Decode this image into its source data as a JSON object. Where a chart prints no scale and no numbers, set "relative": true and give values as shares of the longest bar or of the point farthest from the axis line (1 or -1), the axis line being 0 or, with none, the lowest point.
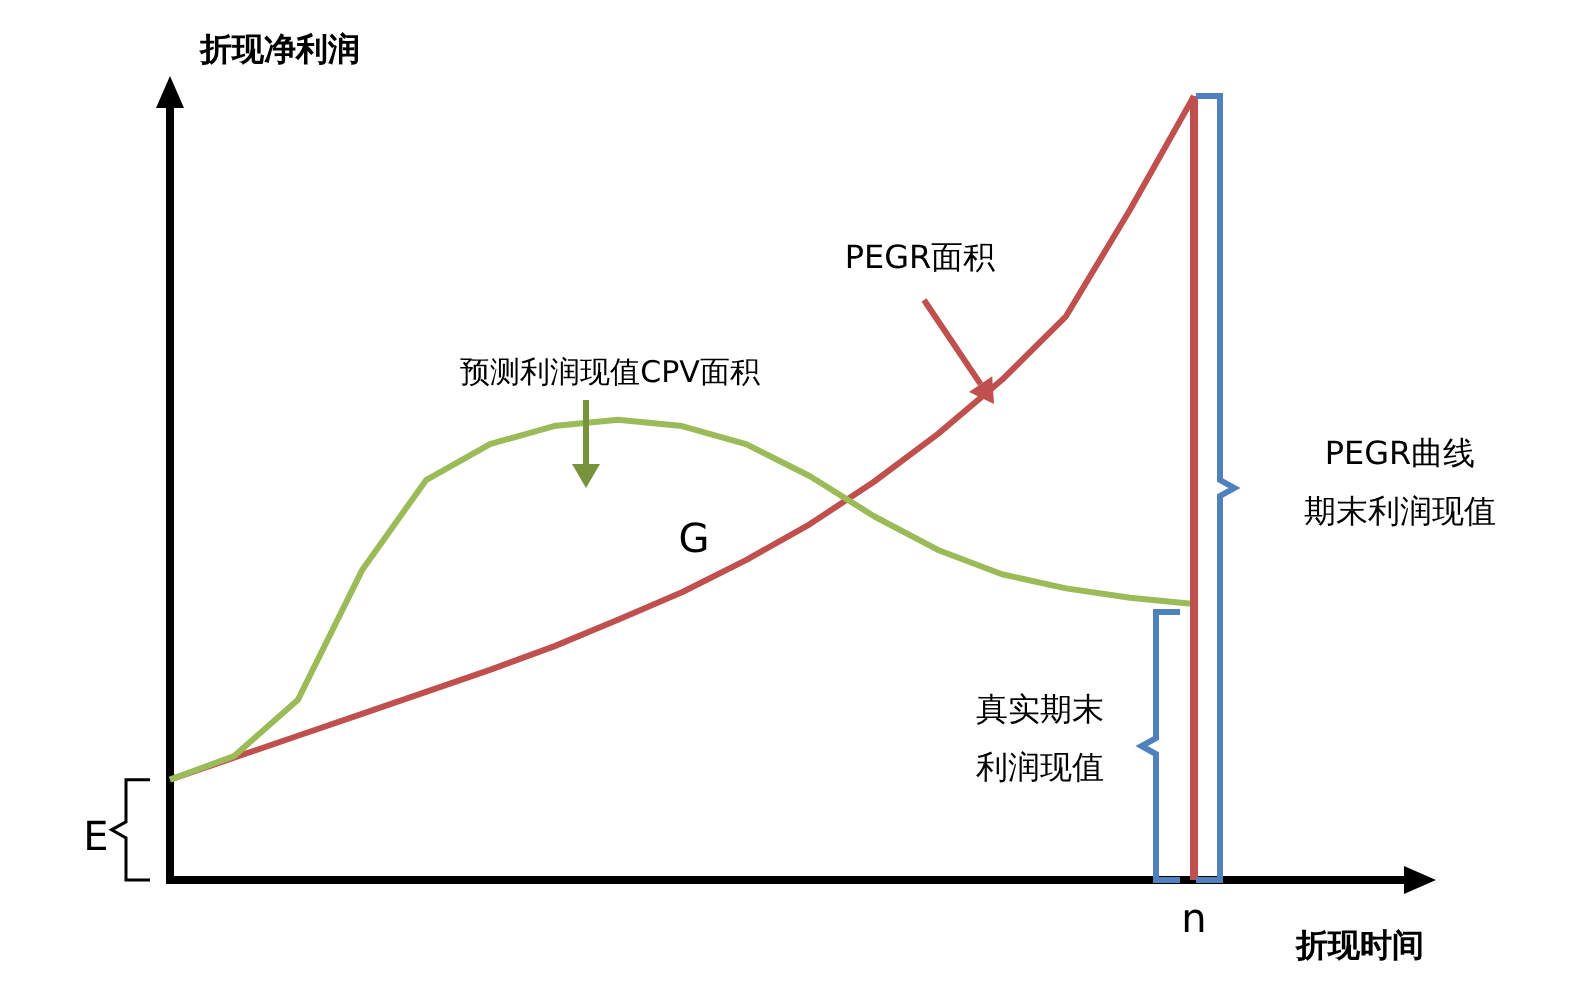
{
  "chart_data": {
    "type": "line",
    "relative": true,
    "xlabel": "折现时间",
    "ylabel": "折现净利润",
    "categories": [
      null,
      null,
      null,
      null,
      null,
      null,
      null,
      null,
      null,
      null,
      null,
      null,
      null,
      null,
      null,
      null,
      null
    ],
    "series": [
      {
        "color": "#c0504d",
        "values": [
          0.128,
          0.156,
          0.184,
          0.212,
          0.24,
          0.268,
          0.298,
          0.332,
          0.367,
          0.408,
          0.454,
          0.508,
          0.569,
          0.638,
          0.719,
          0.855,
          1
        ]
      },
      {
        "color": "#9bbb59",
        "values": [
          0.128,
          0.158,
          0.23,
          0.395,
          0.51,
          0.556,
          0.579,
          0.587,
          0.579,
          0.556,
          0.515,
          0.464,
          0.421,
          0.39,
          0.372,
          0.36,
          0.352
        ]
      }
    ],
    "ref_lines": [
      {
        "axis": "x",
        "label": "n",
        "color": "#c0504d"
      }
    ],
    "annotations": [
      "PEGR面积",
      "预测利润现值CPV面积",
      "G",
      "PEGR曲线",
      "期末利润现值",
      "真实期末",
      "利润现值",
      "E"
    ]
  }
}
